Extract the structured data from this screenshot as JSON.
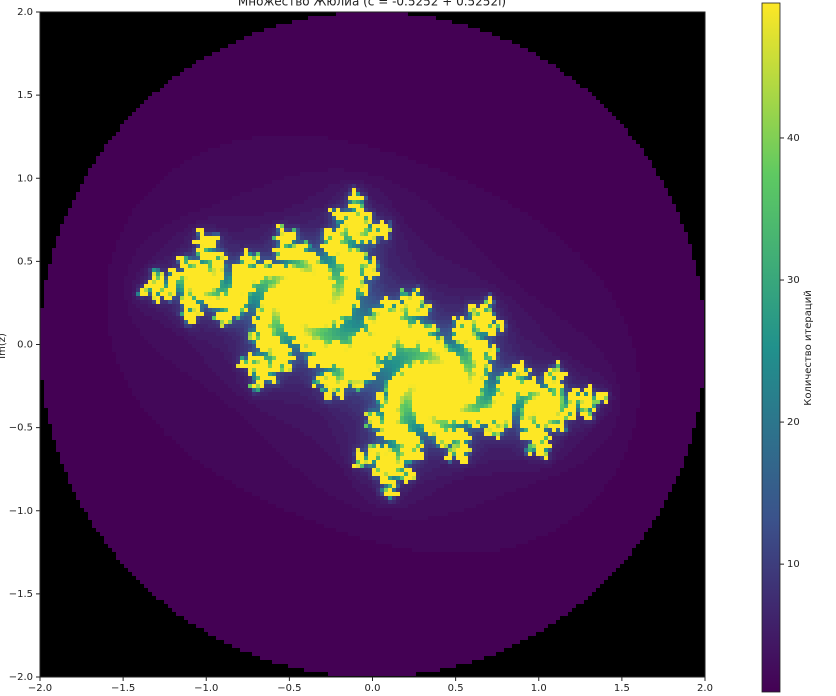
{
  "chart_data": {
    "type": "julia",
    "title": "Множество Жюлиа (c = -0.5252 + 0.5252i)",
    "ylabel": "Im(z)",
    "colorbar_label": "Количество итераций",
    "c": {
      "re": -0.5252,
      "im": 0.5252
    },
    "colormap": "viridis",
    "xlim": [
      -2.0,
      2.0
    ],
    "ylim": [
      -2.0,
      2.0
    ],
    "xticks": [
      {
        "value": -2.0,
        "label": "−2.0"
      },
      {
        "value": -1.5,
        "label": "−1.5"
      },
      {
        "value": -1.0,
        "label": "−1.0"
      },
      {
        "value": -0.5,
        "label": "−0.5"
      },
      {
        "value": 0,
        "label": "0.0"
      },
      0.5,
      {
        "value": 1.0,
        "label": "1.0"
      },
      1.5,
      {
        "value": 2.0,
        "label": "2.0"
      }
    ],
    "yticks": [
      {
        "value": -2.0,
        "label": "−2.0"
      },
      {
        "value": -1.5,
        "label": "−1.5"
      },
      {
        "value": -1.0,
        "label": "−1.0"
      },
      {
        "value": -0.5,
        "label": "−0.5"
      },
      {
        "value": 0,
        "label": "0.0"
      },
      0.5,
      {
        "value": 1.0,
        "label": "1.0"
      },
      1.5,
      {
        "value": 2.0,
        "label": "2.0"
      }
    ],
    "clim": [
      1,
      49.5
    ],
    "cticks": [
      10,
      20,
      30,
      40
    ]
  }
}
